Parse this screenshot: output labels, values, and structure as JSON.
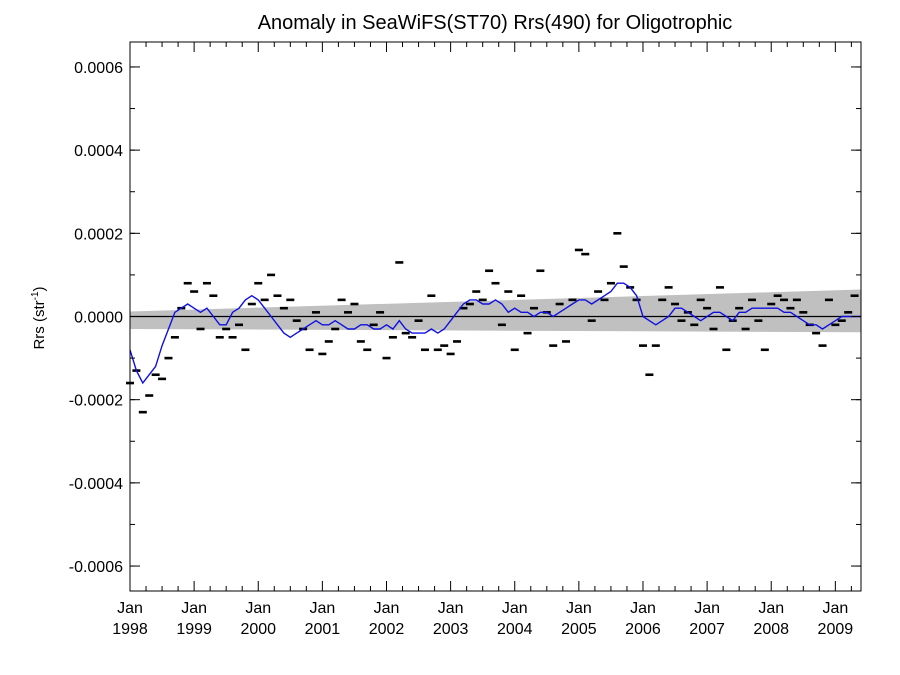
{
  "chart_data": {
    "type": "line",
    "title": "Anomaly in SeaWiFS(ST70) Rrs(490) for Oligotrophic",
    "ylabel": {
      "main": "Rrs (str",
      "sup": "-1",
      "end": ")"
    },
    "ylim": [
      -0.00066,
      0.00066
    ],
    "xlim": [
      1998.0,
      2009.4
    ],
    "ytick_values": [
      -0.0006,
      -0.0004,
      -0.0002,
      0.0,
      0.0002,
      0.0004,
      0.0006
    ],
    "ytick_labels": [
      "-0.0006",
      "-0.0004",
      "-0.0002",
      "0.0000",
      "0.0002",
      "0.0004",
      "0.0006"
    ],
    "xtick_values": [
      1998,
      1999,
      2000,
      2001,
      2002,
      2003,
      2004,
      2005,
      2006,
      2007,
      2008,
      2009
    ],
    "xtick_labels": [
      {
        "month": "Jan",
        "year": "1998"
      },
      {
        "month": "Jan",
        "year": "1999"
      },
      {
        "month": "Jan",
        "year": "2000"
      },
      {
        "month": "Jan",
        "year": "2001"
      },
      {
        "month": "Jan",
        "year": "2002"
      },
      {
        "month": "Jan",
        "year": "2003"
      },
      {
        "month": "Jan",
        "year": "2004"
      },
      {
        "month": "Jan",
        "year": "2005"
      },
      {
        "month": "Jan",
        "year": "2006"
      },
      {
        "month": "Jan",
        "year": "2007"
      },
      {
        "month": "Jan",
        "year": "2008"
      },
      {
        "month": "Jan",
        "year": "2009"
      }
    ],
    "zero_line": 0.0,
    "confidence_band": {
      "color": "#c0c0c0",
      "x": [
        1998.0,
        2009.4
      ],
      "upper": [
        1.2e-05,
        6.5e-05
      ],
      "lower": [
        -3e-05,
        -3.8e-05
      ]
    },
    "series": [
      {
        "kind": "points",
        "color": "#000000",
        "x": [
          1998.0,
          1998.1,
          1998.2,
          1998.3,
          1998.4,
          1998.5,
          1998.6,
          1998.7,
          1998.8,
          1998.9,
          1999.0,
          1999.1,
          1999.2,
          1999.3,
          1999.4,
          1999.5,
          1999.6,
          1999.7,
          1999.8,
          1999.9,
          2000.0,
          2000.1,
          2000.2,
          2000.3,
          2000.4,
          2000.5,
          2000.6,
          2000.7,
          2000.8,
          2000.9,
          2001.0,
          2001.1,
          2001.2,
          2001.3,
          2001.4,
          2001.5,
          2001.6,
          2001.7,
          2001.8,
          2001.9,
          2002.0,
          2002.1,
          2002.2,
          2002.3,
          2002.4,
          2002.5,
          2002.6,
          2002.7,
          2002.8,
          2002.9,
          2003.0,
          2003.1,
          2003.2,
          2003.3,
          2003.4,
          2003.5,
          2003.6,
          2003.7,
          2003.8,
          2003.9,
          2004.0,
          2004.1,
          2004.2,
          2004.3,
          2004.4,
          2004.5,
          2004.6,
          2004.7,
          2004.8,
          2004.9,
          2005.0,
          2005.1,
          2005.2,
          2005.3,
          2005.4,
          2005.5,
          2005.6,
          2005.7,
          2005.8,
          2005.9,
          2006.0,
          2006.1,
          2006.2,
          2006.3,
          2006.4,
          2006.5,
          2006.6,
          2006.7,
          2006.8,
          2006.9,
          2007.0,
          2007.1,
          2007.2,
          2007.3,
          2007.4,
          2007.5,
          2007.6,
          2007.7,
          2007.8,
          2007.9,
          2008.0,
          2008.1,
          2008.2,
          2008.3,
          2008.4,
          2008.5,
          2008.6,
          2008.7,
          2008.8,
          2008.9,
          2009.0,
          2009.1,
          2009.2,
          2009.3
        ],
        "y": [
          -0.00016,
          -0.00013,
          -0.00023,
          -0.00019,
          -0.00014,
          -0.00015,
          -0.0001,
          -5e-05,
          2e-05,
          8e-05,
          6e-05,
          -3e-05,
          8e-05,
          5e-05,
          -5e-05,
          -3e-05,
          -5e-05,
          -2e-05,
          -8e-05,
          3e-05,
          8e-05,
          4e-05,
          0.0001,
          5e-05,
          2e-05,
          4e-05,
          -1e-05,
          -3e-05,
          -8e-05,
          1e-05,
          -9e-05,
          -6e-05,
          -3e-05,
          4e-05,
          1e-05,
          3e-05,
          -6e-05,
          -8e-05,
          -2e-05,
          1e-05,
          -0.0001,
          -5e-05,
          0.00013,
          -4e-05,
          -5e-05,
          -1e-05,
          -8e-05,
          5e-05,
          -8e-05,
          -7e-05,
          -9e-05,
          -6e-05,
          2e-05,
          3e-05,
          6e-05,
          4e-05,
          0.00011,
          8e-05,
          -2e-05,
          6e-05,
          -8e-05,
          5e-05,
          -4e-05,
          2e-05,
          0.00011,
          1e-05,
          -7e-05,
          3e-05,
          -6e-05,
          4e-05,
          0.00016,
          0.00015,
          -1e-05,
          6e-05,
          4e-05,
          8e-05,
          0.0002,
          0.00012,
          7e-05,
          4e-05,
          -7e-05,
          -0.00014,
          -7e-05,
          4e-05,
          7e-05,
          3e-05,
          -1e-05,
          1e-05,
          -2e-05,
          4e-05,
          2e-05,
          -3e-05,
          7e-05,
          -8e-05,
          -1e-05,
          2e-05,
          -3e-05,
          4e-05,
          -1e-05,
          -8e-05,
          3e-05,
          5e-05,
          4e-05,
          2e-05,
          4e-05,
          1e-05,
          -2e-05,
          -4e-05,
          -7e-05,
          4e-05,
          -2e-05,
          -1e-05,
          1e-05,
          5e-05
        ]
      },
      {
        "kind": "line",
        "color": "#1010e0",
        "x": [
          1998.0,
          1998.1,
          1998.2,
          1998.3,
          1998.4,
          1998.5,
          1998.6,
          1998.7,
          1998.8,
          1998.9,
          1999.0,
          1999.1,
          1999.2,
          1999.3,
          1999.4,
          1999.5,
          1999.6,
          1999.7,
          1999.8,
          1999.9,
          2000.0,
          2000.1,
          2000.2,
          2000.3,
          2000.4,
          2000.5,
          2000.6,
          2000.7,
          2000.8,
          2000.9,
          2001.0,
          2001.1,
          2001.2,
          2001.3,
          2001.4,
          2001.5,
          2001.6,
          2001.7,
          2001.8,
          2001.9,
          2002.0,
          2002.1,
          2002.2,
          2002.3,
          2002.4,
          2002.5,
          2002.6,
          2002.7,
          2002.8,
          2002.9,
          2003.0,
          2003.1,
          2003.2,
          2003.3,
          2003.4,
          2003.5,
          2003.6,
          2003.7,
          2003.8,
          2003.9,
          2004.0,
          2004.1,
          2004.2,
          2004.3,
          2004.4,
          2004.5,
          2004.6,
          2004.7,
          2004.8,
          2004.9,
          2005.0,
          2005.1,
          2005.2,
          2005.3,
          2005.4,
          2005.5,
          2005.6,
          2005.7,
          2005.8,
          2005.9,
          2006.0,
          2006.1,
          2006.2,
          2006.3,
          2006.4,
          2006.5,
          2006.6,
          2006.7,
          2006.8,
          2006.9,
          2007.0,
          2007.1,
          2007.2,
          2007.3,
          2007.4,
          2007.5,
          2007.6,
          2007.7,
          2007.8,
          2007.9,
          2008.0,
          2008.1,
          2008.2,
          2008.3,
          2008.4,
          2008.5,
          2008.6,
          2008.7,
          2008.8,
          2008.9,
          2009.0,
          2009.1,
          2009.2,
          2009.3,
          2009.4
        ],
        "y": [
          -8e-05,
          -0.00013,
          -0.00016,
          -0.00014,
          -0.00012,
          -7e-05,
          -3e-05,
          1e-05,
          2e-05,
          3e-05,
          2e-05,
          1e-05,
          2e-05,
          0.0,
          -2e-05,
          -2e-05,
          1e-05,
          2e-05,
          4e-05,
          5e-05,
          4e-05,
          2e-05,
          0.0,
          -2e-05,
          -4e-05,
          -5e-05,
          -4e-05,
          -3e-05,
          -2e-05,
          -1e-05,
          -2e-05,
          -2e-05,
          -1e-05,
          -2e-05,
          -3e-05,
          -3e-05,
          -2e-05,
          -2e-05,
          -3e-05,
          -3e-05,
          -2e-05,
          -3e-05,
          -1e-05,
          -3e-05,
          -4e-05,
          -4e-05,
          -4e-05,
          -3e-05,
          -4e-05,
          -3e-05,
          -1e-05,
          1e-05,
          3e-05,
          4e-05,
          4e-05,
          3e-05,
          3e-05,
          4e-05,
          3e-05,
          1e-05,
          2e-05,
          1e-05,
          1e-05,
          0.0,
          1e-05,
          1e-05,
          0.0,
          1e-05,
          2e-05,
          3e-05,
          4e-05,
          4e-05,
          3e-05,
          4e-05,
          5e-05,
          6e-05,
          8e-05,
          8e-05,
          7e-05,
          5e-05,
          0.0,
          -1e-05,
          -2e-05,
          -1e-05,
          0.0,
          2e-05,
          2e-05,
          1e-05,
          0.0,
          -1e-05,
          0.0,
          1e-05,
          1e-05,
          0.0,
          -1e-05,
          1e-05,
          1e-05,
          2e-05,
          2e-05,
          2e-05,
          2e-05,
          2e-05,
          1e-05,
          1e-05,
          0.0,
          -1e-05,
          -2e-05,
          -2e-05,
          -3e-05,
          -2e-05,
          -1e-05,
          0.0,
          0.0,
          0.0,
          0.0
        ]
      }
    ]
  }
}
